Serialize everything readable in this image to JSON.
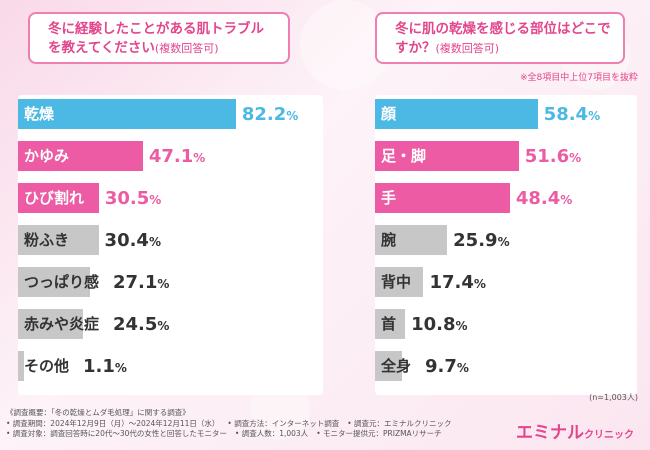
{
  "colors": {
    "accent": "#e2468c",
    "pink_bar": "#ec5ba3",
    "blue_bar": "#4cb8e4",
    "gray_bar": "#c7c7c7"
  },
  "chart_data": [
    {
      "type": "bar",
      "orientation": "horizontal",
      "title": "冬に経験したことがある肌トラブルを教えてください",
      "subtitle": "(複数回答可)",
      "categories": [
        "乾燥",
        "かゆみ",
        "ひび割れ",
        "粉ふき",
        "つっぱり感",
        "赤みや炎症",
        "その他"
      ],
      "values": [
        82.2,
        47.1,
        30.5,
        30.4,
        27.1,
        24.5,
        1.1
      ],
      "labels": [
        "82.2",
        "47.1",
        "30.5",
        "30.4",
        "27.1",
        "24.5",
        "1.1"
      ],
      "unit": "%",
      "xlim": [
        0,
        100
      ]
    },
    {
      "type": "bar",
      "orientation": "horizontal",
      "title": "冬に肌の乾燥を感じる部位はどこですか？",
      "subtitle": "(複数回答可)",
      "note": "※全8項目中上位7項目を抜粋",
      "categories": [
        "顔",
        "足・脚",
        "手",
        "腕",
        "背中",
        "首",
        "全身"
      ],
      "values": [
        58.4,
        51.6,
        48.4,
        25.9,
        17.4,
        10.8,
        9.7
      ],
      "labels": [
        "58.4",
        "51.6",
        "48.4",
        "25.9",
        "17.4",
        "10.8",
        "9.7"
      ],
      "unit": "%",
      "xlim": [
        0,
        70
      ],
      "sample_size": "(n=1,003人)"
    }
  ],
  "footer": {
    "line1": "《調査概要：「冬の乾燥とムダ毛処理」に関する調査》",
    "line2a": "• 調査期間：2024年12月9日（月）〜2024年12月11日（水）",
    "line2b": "• 調査方法：インターネット調査",
    "line2c": "• 調査元：エミナルクリニック",
    "line3a": "• 調査対象：調査回答時に20代〜30代の女性と回答したモニター",
    "line3b": "• 調査人数：1,003人",
    "line3c": "• モニター提供元：PRIZMAリサーチ"
  },
  "logo": {
    "main": "エミナル",
    "sub": "クリニック"
  }
}
